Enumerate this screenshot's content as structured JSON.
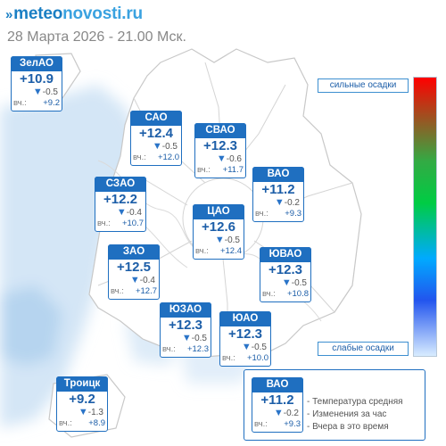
{
  "header": {
    "logo_prefix": "meteo",
    "logo_suffix": "novosti.ru",
    "datetime": "28 Марта 2026 - 21.00 Мск."
  },
  "districts": [
    {
      "id": "zelao",
      "name": "ЗелАО",
      "temp": "+10.9",
      "change": "-0.5",
      "yesterday_label": "вч.:",
      "yesterday": "+9.2"
    },
    {
      "id": "sao",
      "name": "САО",
      "temp": "+12.4",
      "change": "-0.5",
      "yesterday_label": "вч.:",
      "yesterday": "+12.0"
    },
    {
      "id": "svao",
      "name": "СВАО",
      "temp": "+12.3",
      "change": "-0.6",
      "yesterday_label": "вч.:",
      "yesterday": "+11.7"
    },
    {
      "id": "vao",
      "name": "ВАО",
      "temp": "+11.2",
      "change": "-0.2",
      "yesterday_label": "вч.:",
      "yesterday": "+9.3"
    },
    {
      "id": "szao",
      "name": "СЗАО",
      "temp": "+12.2",
      "change": "-0.4",
      "yesterday_label": "вч.:",
      "yesterday": "+10.7"
    },
    {
      "id": "cao",
      "name": "ЦАО",
      "temp": "+12.6",
      "change": "-0.5",
      "yesterday_label": "вч.:",
      "yesterday": "+12.4"
    },
    {
      "id": "zao",
      "name": "ЗАО",
      "temp": "+12.5",
      "change": "-0.4",
      "yesterday_label": "вч.:",
      "yesterday": "+12.7"
    },
    {
      "id": "yuvao",
      "name": "ЮВАО",
      "temp": "+12.3",
      "change": "-0.5",
      "yesterday_label": "вч.:",
      "yesterday": "+10.8"
    },
    {
      "id": "yuzao",
      "name": "ЮЗАО",
      "temp": "+12.3",
      "change": "-0.5",
      "yesterday_label": "вч.:",
      "yesterday": "+12.3"
    },
    {
      "id": "yuao",
      "name": "ЮАО",
      "temp": "+12.3",
      "change": "-0.5",
      "yesterday_label": "вч.:",
      "yesterday": "+10.0"
    },
    {
      "id": "troitsk",
      "name": "Троицк",
      "temp": "+9.2",
      "change": "-1.3",
      "yesterday_label": "вч.:",
      "yesterday": "+8.9"
    }
  ],
  "precip_scale": {
    "top_label": "сильные осадки",
    "bottom_label": "слабые осадки"
  },
  "legend": {
    "card": {
      "name": "ВАО",
      "temp": "+11.2",
      "change": "-0.2",
      "yesterday_label": "вч.:",
      "yesterday": "+9.3"
    },
    "line1": "- Температура средняя",
    "line2": "- Изменения за час",
    "line3": "- Вчера в это время"
  },
  "colors": {
    "card_header": "#1f6fc0",
    "temp_text": "#1c5ea8",
    "precip_area": "#cfe3f5"
  }
}
